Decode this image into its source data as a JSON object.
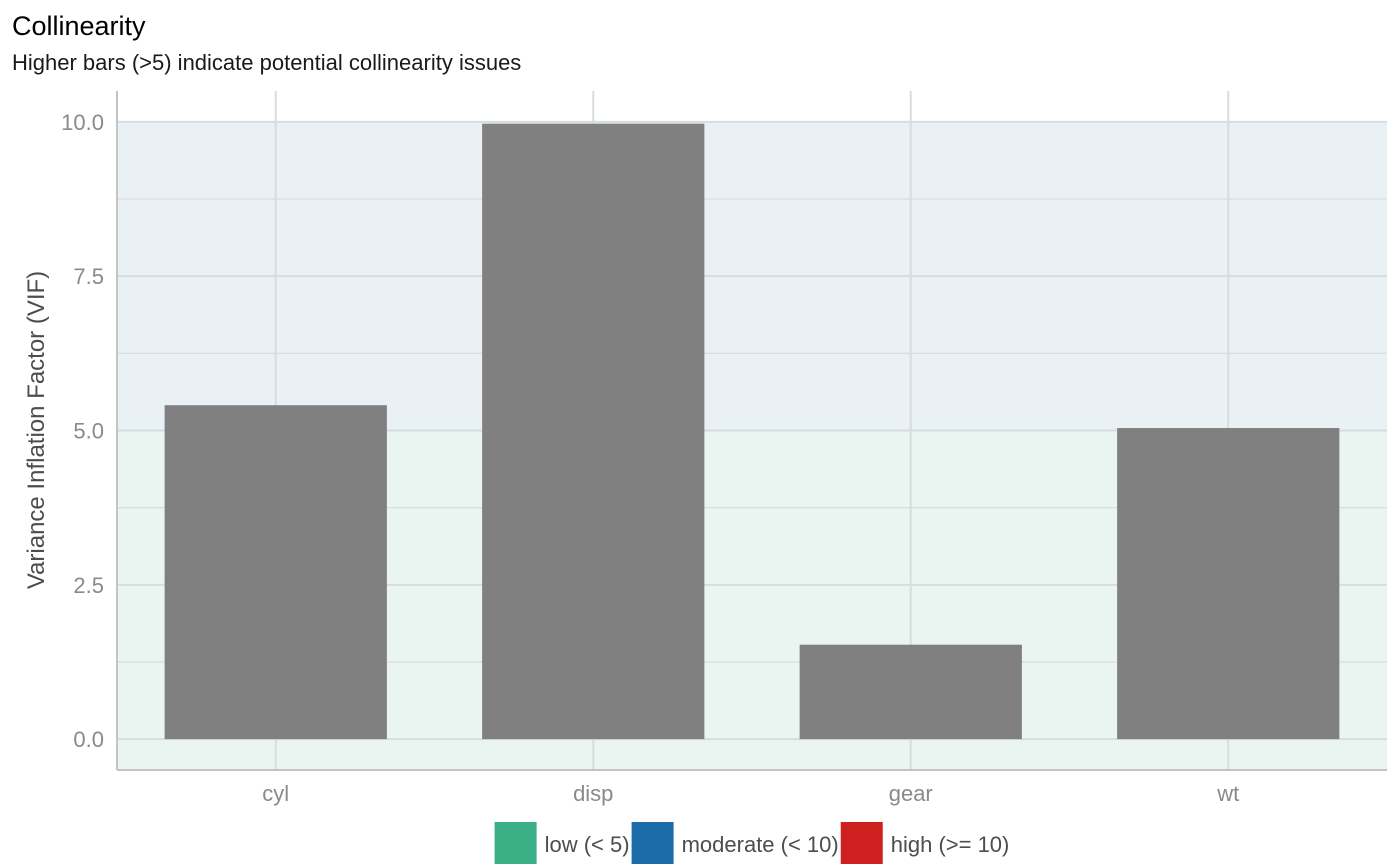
{
  "chart_data": {
    "type": "bar",
    "title": "Collinearity",
    "subtitle": "Higher bars (>5) indicate potential collinearity issues",
    "xlabel": "",
    "ylabel": "Variance Inflation Factor (VIF)",
    "categories": [
      "cyl",
      "disp",
      "gear",
      "wt"
    ],
    "values": [
      5.41,
      9.97,
      1.53,
      5.04
    ],
    "bar_color": "#808080",
    "ylim": [
      -0.5,
      10.5
    ],
    "yticks": [
      0,
      2.5,
      5,
      7.5,
      10
    ],
    "ytick_labels": [
      "0.0",
      "2.5",
      "5.0",
      "7.5",
      "10.0"
    ],
    "grid": true,
    "background_bands": [
      {
        "from": -0.5,
        "to": 5,
        "color": "#eaf5f2"
      },
      {
        "from": 5,
        "to": 10,
        "color": "#eaf1f5"
      }
    ],
    "legend": {
      "placement": "bottom",
      "entries": [
        {
          "label": "low (< 5)",
          "color": "#3aaf85"
        },
        {
          "label": "moderate (< 10)",
          "color": "#1b6ca8"
        },
        {
          "label": "high (>= 10)",
          "color": "#cd201f"
        }
      ]
    }
  }
}
